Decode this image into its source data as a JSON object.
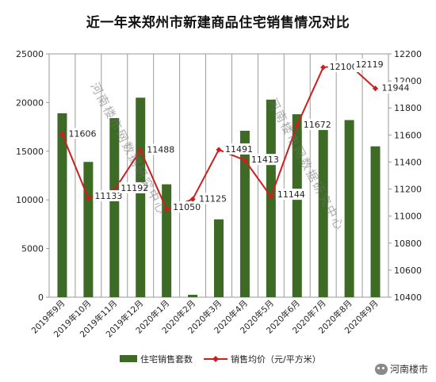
{
  "chart_data": {
    "type": "bar+line",
    "title": "近一年来郑州市新建商品住宅销售情况对比",
    "categories": [
      "2019年9月",
      "2019年10月",
      "2019年11月",
      "2019年12月",
      "2020年1月",
      "2020年2月",
      "2020年3月",
      "2020年4月",
      "2020年5月",
      "2020年6月",
      "2020年7月",
      "2020年8月",
      "2020年9月"
    ],
    "series": [
      {
        "name": "住宅销售套数",
        "type": "bar",
        "axis": "left",
        "color": "#3d6b25",
        "values": [
          18900,
          13900,
          18400,
          20500,
          11600,
          250,
          8000,
          17100,
          20300,
          18800,
          17200,
          18200,
          15500
        ]
      },
      {
        "name": "销售均价（元/平方米）",
        "type": "line",
        "axis": "right",
        "color": "#cc1f1f",
        "values": [
          11606,
          11133,
          11192,
          11488,
          11050,
          11125,
          11491,
          11413,
          11144,
          11672,
          12100,
          12119,
          11944
        ]
      }
    ],
    "data_labels": [
      "11606",
      "11133",
      "11192",
      "11488",
      "11050",
      "11125",
      "11491",
      "11413",
      "11144",
      "11672",
      "12100",
      "12119",
      "11944"
    ],
    "y_left": {
      "ylim": [
        0,
        25000
      ],
      "ticks": [
        "0",
        "5000",
        "10000",
        "15000",
        "20000",
        "25000"
      ]
    },
    "y_right": {
      "ylim": [
        10400,
        12200
      ],
      "ticks": [
        "10400",
        "10600",
        "10800",
        "11000",
        "11200",
        "11400",
        "11600",
        "11800",
        "12000",
        "12200"
      ]
    },
    "legend_position": "bottom",
    "grid": "vertical"
  },
  "watermarks": [
    "河南楼市网数据研究中心",
    "河南楼市网数据研究中心"
  ],
  "brand": {
    "name": "河南楼市"
  }
}
